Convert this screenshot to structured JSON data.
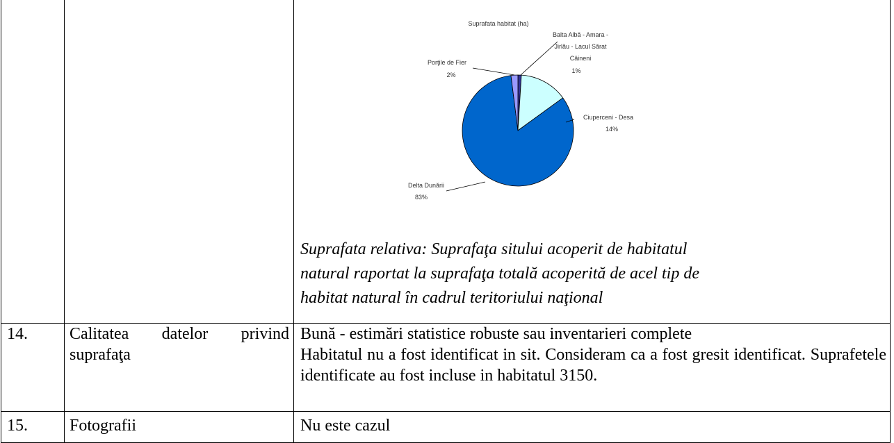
{
  "chart_data": {
    "type": "pie",
    "title": "Suprafata habitat (ha)",
    "categories": [
      "Balta Albă - Amara - Jirlău - Lacul Sărat Câineni",
      "Ciuperceni - Desa",
      "Delta Dunării",
      "Porţile de Fier"
    ],
    "values": [
      1,
      14,
      83,
      2
    ],
    "value_labels": [
      "1%",
      "14%",
      "83%",
      "2%"
    ],
    "colors": [
      "#333399",
      "#ccffff",
      "#0066cc",
      "#9999ff"
    ]
  },
  "note": "Suprafata relativa: Suprafaţa sitului acoperit de habitatul natural raportat la suprafaţa totală acoperită de acel tip de habitat natural în cadrul teritoriului naţional",
  "table": {
    "rows": [
      {
        "number": "14.",
        "label": "Calitatea datelor privind suprafaţa",
        "text": [
          "Bună - estimări statistice robuste sau inventarieri complete",
          "Habitatul nu a fost identificat in sit. Consideram ca a fost gresit identificat. Suprafetele identificate au fost incluse in habitatul 3150."
        ]
      },
      {
        "number": "15.",
        "label": "Fotografii",
        "text": [
          "Nu este cazul"
        ]
      }
    ]
  }
}
